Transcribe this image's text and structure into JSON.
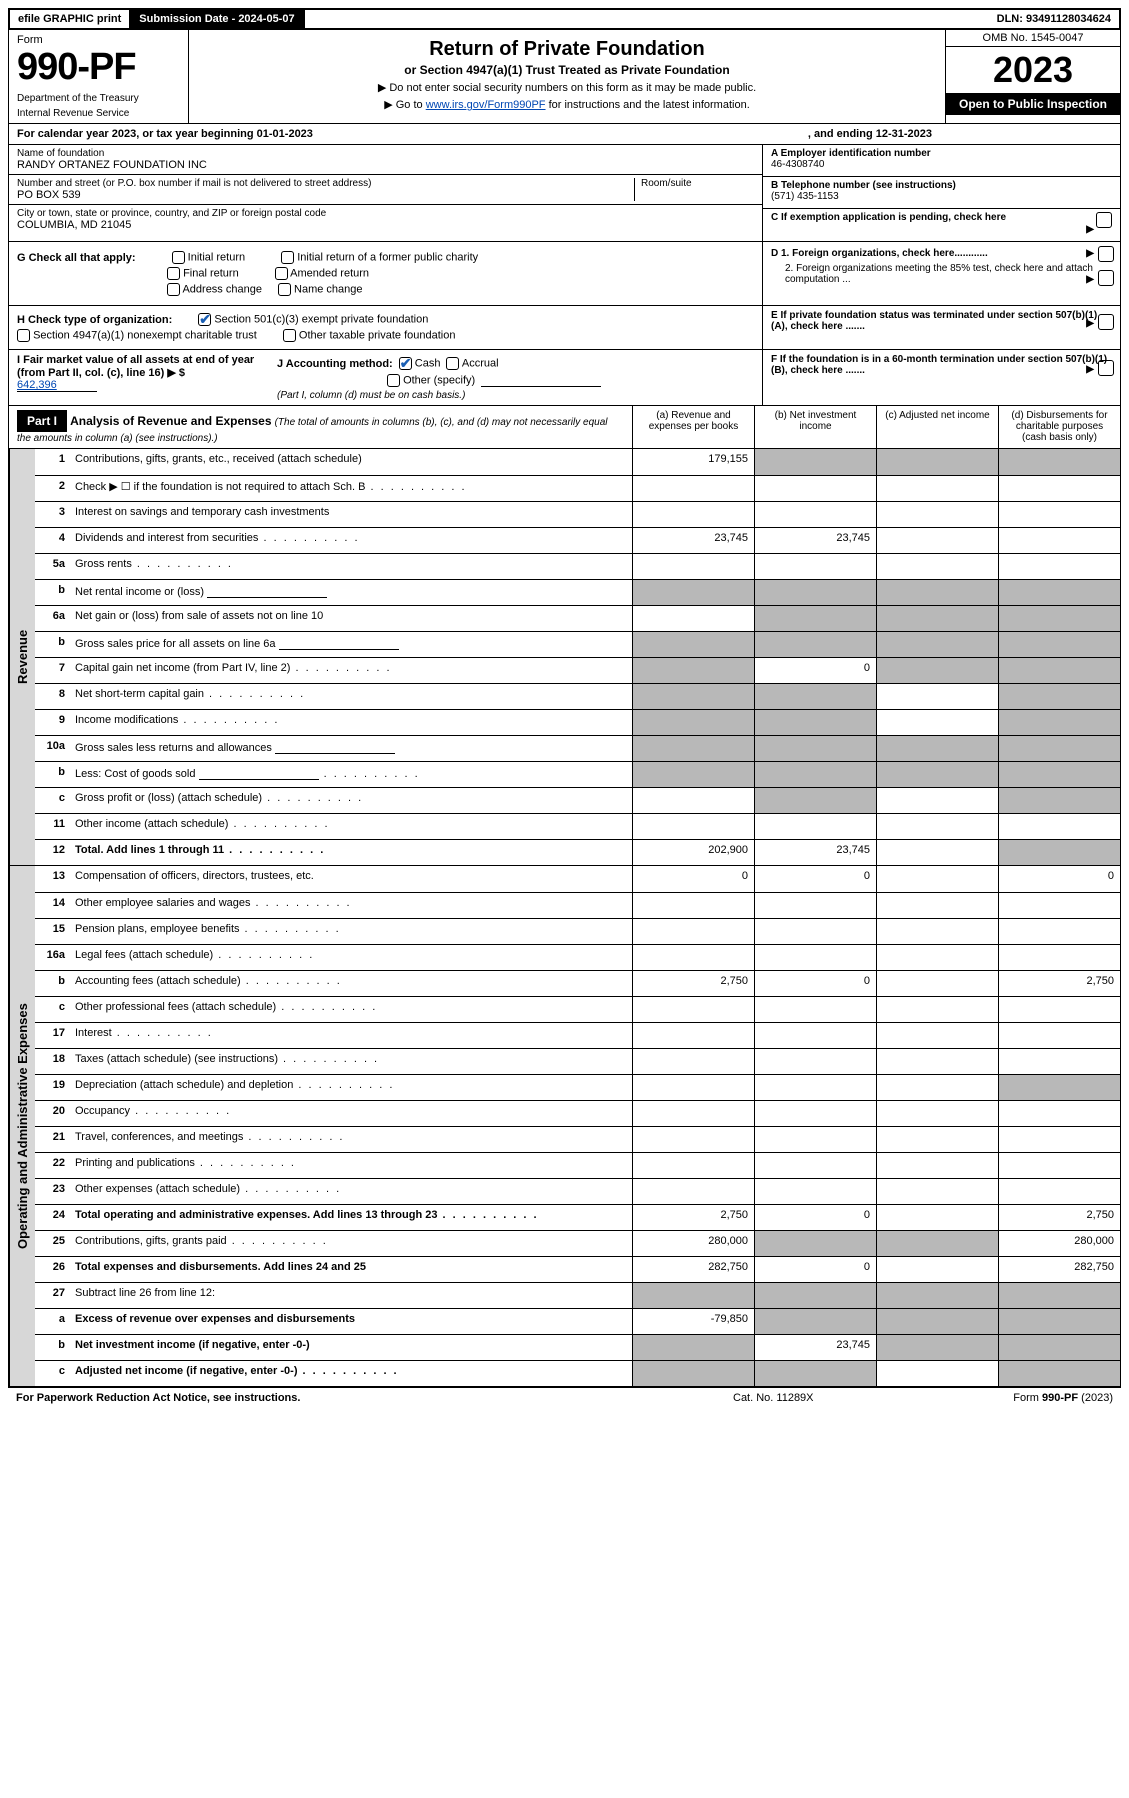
{
  "topbar": {
    "efile": "efile GRAPHIC print",
    "submission_label": "Submission Date - 2024-05-07",
    "dln": "DLN: 93491128034624"
  },
  "header": {
    "form_word": "Form",
    "form_number": "990-PF",
    "dept": "Department of the Treasury",
    "irs": "Internal Revenue Service",
    "title": "Return of Private Foundation",
    "subtitle": "or Section 4947(a)(1) Trust Treated as Private Foundation",
    "note1": "▶ Do not enter social security numbers on this form as it may be made public.",
    "note2_pre": "▶ Go to ",
    "note2_link": "www.irs.gov/Form990PF",
    "note2_post": " for instructions and the latest information.",
    "omb": "OMB No. 1545-0047",
    "year": "2023",
    "inspect": "Open to Public Inspection"
  },
  "calyear": {
    "text": "For calendar year 2023, or tax year beginning 01-01-2023",
    "ending": ", and ending 12-31-2023"
  },
  "info": {
    "name_label": "Name of foundation",
    "name": "RANDY ORTANEZ FOUNDATION INC",
    "addr_label": "Number and street (or P.O. box number if mail is not delivered to street address)",
    "room_label": "Room/suite",
    "addr": "PO BOX 539",
    "city_label": "City or town, state or province, country, and ZIP or foreign postal code",
    "city": "COLUMBIA, MD  21045",
    "a_label": "A Employer identification number",
    "a_value": "46-4308740",
    "b_label": "B Telephone number (see instructions)",
    "b_value": "(571) 435-1153",
    "c_label": "C If exemption application is pending, check here"
  },
  "checks": {
    "g_label": "G Check all that apply:",
    "g_opts": [
      "Initial return",
      "Initial return of a former public charity",
      "Final return",
      "Amended return",
      "Address change",
      "Name change"
    ],
    "h_label": "H Check type of organization:",
    "h_opt1": "Section 501(c)(3) exempt private foundation",
    "h_opt2": "Section 4947(a)(1) nonexempt charitable trust",
    "h_opt3": "Other taxable private foundation",
    "i_label": "I Fair market value of all assets at end of year (from Part II, col. (c), line 16) ▶ $",
    "i_value": "642,396",
    "j_label": "J Accounting method:",
    "j_cash": "Cash",
    "j_accrual": "Accrual",
    "j_other": "Other (specify)",
    "j_note": "(Part I, column (d) must be on cash basis.)",
    "d1": "D 1. Foreign organizations, check here............",
    "d2": "2. Foreign organizations meeting the 85% test, check here and attach computation ...",
    "e": "E  If private foundation status was terminated under section 507(b)(1)(A), check here .......",
    "f": "F  If the foundation is in a 60-month termination under section 507(b)(1)(B), check here .......",
    "arrow": "▶"
  },
  "part1": {
    "label": "Part I",
    "title": "Analysis of Revenue and Expenses",
    "subtitle": "(The total of amounts in columns (b), (c), and (d) may not necessarily equal the amounts in column (a) (see instructions).)",
    "cols": {
      "a": "(a)   Revenue and expenses per books",
      "b": "(b)   Net investment income",
      "c": "(c)   Adjusted net income",
      "d": "(d)  Disbursements for charitable purposes (cash basis only)"
    }
  },
  "sections": {
    "revenue": "Revenue",
    "expenses": "Operating and Administrative Expenses"
  },
  "rows": [
    {
      "n": "1",
      "d": "Contributions, gifts, grants, etc., received (attach schedule)",
      "a": "179,155",
      "sb": true,
      "sc": true,
      "sd": true
    },
    {
      "n": "2",
      "d": "Check ▶ ☐ if the foundation is not required to attach Sch. B",
      "dots": true,
      "noabcd": true
    },
    {
      "n": "3",
      "d": "Interest on savings and temporary cash investments"
    },
    {
      "n": "4",
      "d": "Dividends and interest from securities",
      "dots": true,
      "a": "23,745",
      "b": "23,745"
    },
    {
      "n": "5a",
      "d": "Gross rents",
      "dots": true
    },
    {
      "n": "b",
      "d": "Net rental income or (loss)",
      "inline": true,
      "sa": true,
      "sb": true,
      "sc": true,
      "sd": true
    },
    {
      "n": "6a",
      "d": "Net gain or (loss) from sale of assets not on line 10",
      "sb": true,
      "sc": true,
      "sd": true
    },
    {
      "n": "b",
      "d": "Gross sales price for all assets on line 6a",
      "inline": true,
      "sa": true,
      "sb": true,
      "sc": true,
      "sd": true
    },
    {
      "n": "7",
      "d": "Capital gain net income (from Part IV, line 2)",
      "dots": true,
      "sa": true,
      "b": "0",
      "sc": true,
      "sd": true
    },
    {
      "n": "8",
      "d": "Net short-term capital gain",
      "dots": true,
      "sa": true,
      "sb": true,
      "sd": true
    },
    {
      "n": "9",
      "d": "Income modifications",
      "dots": true,
      "sa": true,
      "sb": true,
      "sd": true
    },
    {
      "n": "10a",
      "d": "Gross sales less returns and allowances",
      "inline": true,
      "sa": true,
      "sb": true,
      "sc": true,
      "sd": true
    },
    {
      "n": "b",
      "d": "Less: Cost of goods sold",
      "dots": true,
      "inline": true,
      "sa": true,
      "sb": true,
      "sc": true,
      "sd": true
    },
    {
      "n": "c",
      "d": "Gross profit or (loss) (attach schedule)",
      "dots": true,
      "sb": true,
      "sd": true
    },
    {
      "n": "11",
      "d": "Other income (attach schedule)",
      "dots": true
    },
    {
      "n": "12",
      "d": "Total. Add lines 1 through 11",
      "dots": true,
      "bold": true,
      "a": "202,900",
      "b": "23,745",
      "sd": true
    }
  ],
  "exp_rows": [
    {
      "n": "13",
      "d": "Compensation of officers, directors, trustees, etc.",
      "a": "0",
      "b": "0",
      "d2": "0"
    },
    {
      "n": "14",
      "d": "Other employee salaries and wages",
      "dots": true
    },
    {
      "n": "15",
      "d": "Pension plans, employee benefits",
      "dots": true
    },
    {
      "n": "16a",
      "d": "Legal fees (attach schedule)",
      "dots": true
    },
    {
      "n": "b",
      "d": "Accounting fees (attach schedule)",
      "dots": true,
      "a": "2,750",
      "b": "0",
      "d2": "2,750"
    },
    {
      "n": "c",
      "d": "Other professional fees (attach schedule)",
      "dots": true
    },
    {
      "n": "17",
      "d": "Interest",
      "dots": true
    },
    {
      "n": "18",
      "d": "Taxes (attach schedule) (see instructions)",
      "dots": true
    },
    {
      "n": "19",
      "d": "Depreciation (attach schedule) and depletion",
      "dots": true,
      "sd": true
    },
    {
      "n": "20",
      "d": "Occupancy",
      "dots": true
    },
    {
      "n": "21",
      "d": "Travel, conferences, and meetings",
      "dots": true
    },
    {
      "n": "22",
      "d": "Printing and publications",
      "dots": true
    },
    {
      "n": "23",
      "d": "Other expenses (attach schedule)",
      "dots": true
    },
    {
      "n": "24",
      "d": "Total operating and administrative expenses. Add lines 13 through 23",
      "dots": true,
      "bold": true,
      "a": "2,750",
      "b": "0",
      "d2": "2,750"
    },
    {
      "n": "25",
      "d": "Contributions, gifts, grants paid",
      "dots": true,
      "a": "280,000",
      "sb": true,
      "sc": true,
      "d2": "280,000"
    },
    {
      "n": "26",
      "d": "Total expenses and disbursements. Add lines 24 and 25",
      "bold": true,
      "a": "282,750",
      "b": "0",
      "d2": "282,750"
    },
    {
      "n": "27",
      "d": "Subtract line 26 from line 12:",
      "sa": true,
      "sb": true,
      "sc": true,
      "sd": true
    },
    {
      "n": "a",
      "d": "Excess of revenue over expenses and disbursements",
      "bold": true,
      "a": "-79,850",
      "sb": true,
      "sc": true,
      "sd": true
    },
    {
      "n": "b",
      "d": "Net investment income (if negative, enter -0-)",
      "bold": true,
      "sa": true,
      "b": "23,745",
      "sc": true,
      "sd": true
    },
    {
      "n": "c",
      "d": "Adjusted net income (if negative, enter -0-)",
      "dots": true,
      "bold": true,
      "sa": true,
      "sb": true,
      "sd": true
    }
  ],
  "footer": {
    "left": "For Paperwork Reduction Act Notice, see instructions.",
    "mid": "Cat. No. 11289X",
    "right": "Form 990-PF (2023)"
  },
  "colors": {
    "shaded": "#b8b8b8",
    "side": "#d7d7d7",
    "link": "#0047b3",
    "check": "#1a5fb4"
  }
}
